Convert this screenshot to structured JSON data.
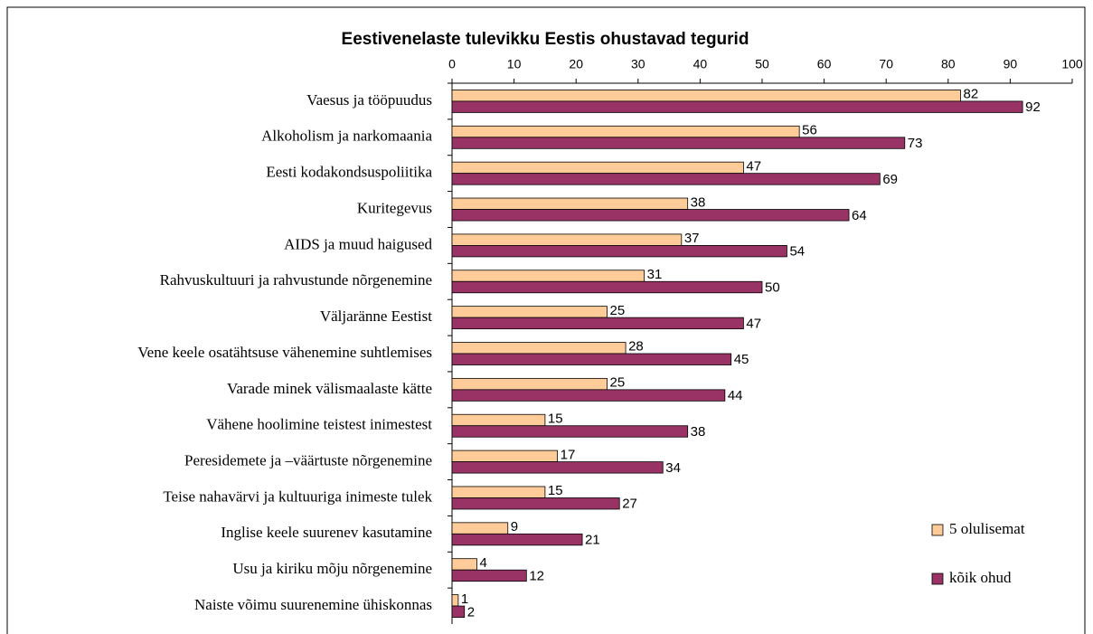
{
  "chart_data": {
    "type": "bar",
    "orientation": "horizontal",
    "title": "Eestivenelaste tulevikku Eestis ohustavad tegurid",
    "categories": [
      "Vaesus ja tööpuudus",
      "Alkoholism ja narkomaania",
      "Eesti kodakondsuspoliitika",
      "Kuritegevus",
      "AIDS ja muud haigused",
      "Rahvuskultuuri ja rahvustunde nõrgenemine",
      "Väljaränne Eestist",
      "Vene keele osatähtsuse vähenemine suhtlemises",
      "Varade minek välismaalaste kätte",
      "Vähene hoolimine teistest inimestest",
      "Peresidemete ja –väärtuste nõrgenemine",
      "Teise nahavärvi ja kultuuriga inimeste tulek",
      "Inglise keele suurenev kasutamine",
      "Usu ja kiriku mõju nõrgenemine",
      "Naiste võimu suurenemine ühiskonnas"
    ],
    "series": [
      {
        "name": "5 olulisemat",
        "color": "#ffcc99",
        "values": [
          82,
          56,
          47,
          38,
          37,
          31,
          25,
          28,
          25,
          15,
          17,
          15,
          9,
          4,
          1
        ]
      },
      {
        "name": "kõik ohud",
        "color": "#993366",
        "values": [
          92,
          73,
          69,
          64,
          54,
          50,
          47,
          45,
          44,
          38,
          34,
          27,
          21,
          12,
          2
        ]
      }
    ],
    "xlim": [
      0,
      100
    ],
    "xticks": [
      0,
      10,
      20,
      30,
      40,
      50,
      60,
      70,
      80,
      90,
      100
    ],
    "legend": "right"
  }
}
